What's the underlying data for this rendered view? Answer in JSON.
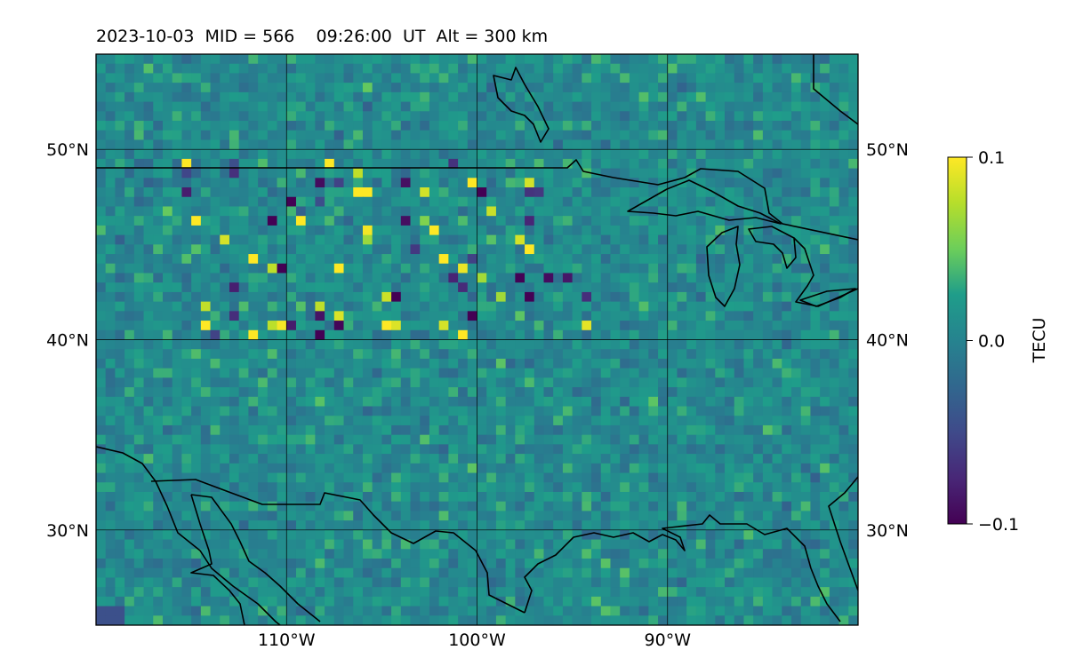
{
  "title": "2023-10-03  MID = 566    09:26:00  UT  Alt = 300 km",
  "map": {
    "lon_range": [
      -120,
      -80
    ],
    "lat_range": [
      25,
      55
    ],
    "lat_grid": [
      30,
      40,
      50
    ],
    "lon_grid": [
      -110,
      -100,
      -90
    ],
    "lat_tick_labels": [
      "30°N",
      "40°N",
      "50°N"
    ],
    "lon_tick_labels": [
      "110°W",
      "100°W",
      "90°W"
    ],
    "field_cell_deg": 0.5
  },
  "colorbar": {
    "label": "TECU",
    "colormap": "viridis",
    "min": -0.1,
    "max": 0.1,
    "tick_labels": [
      "0.1",
      "0.0",
      "−0.1"
    ],
    "tick_values": [
      0.1,
      0.0,
      -0.1
    ]
  },
  "colors": {
    "viridis": [
      "#440154",
      "#482777",
      "#3f4a8a",
      "#31678e",
      "#26838f",
      "#1f9d8a",
      "#6cce5a",
      "#b6de2b",
      "#fee825"
    ]
  }
}
